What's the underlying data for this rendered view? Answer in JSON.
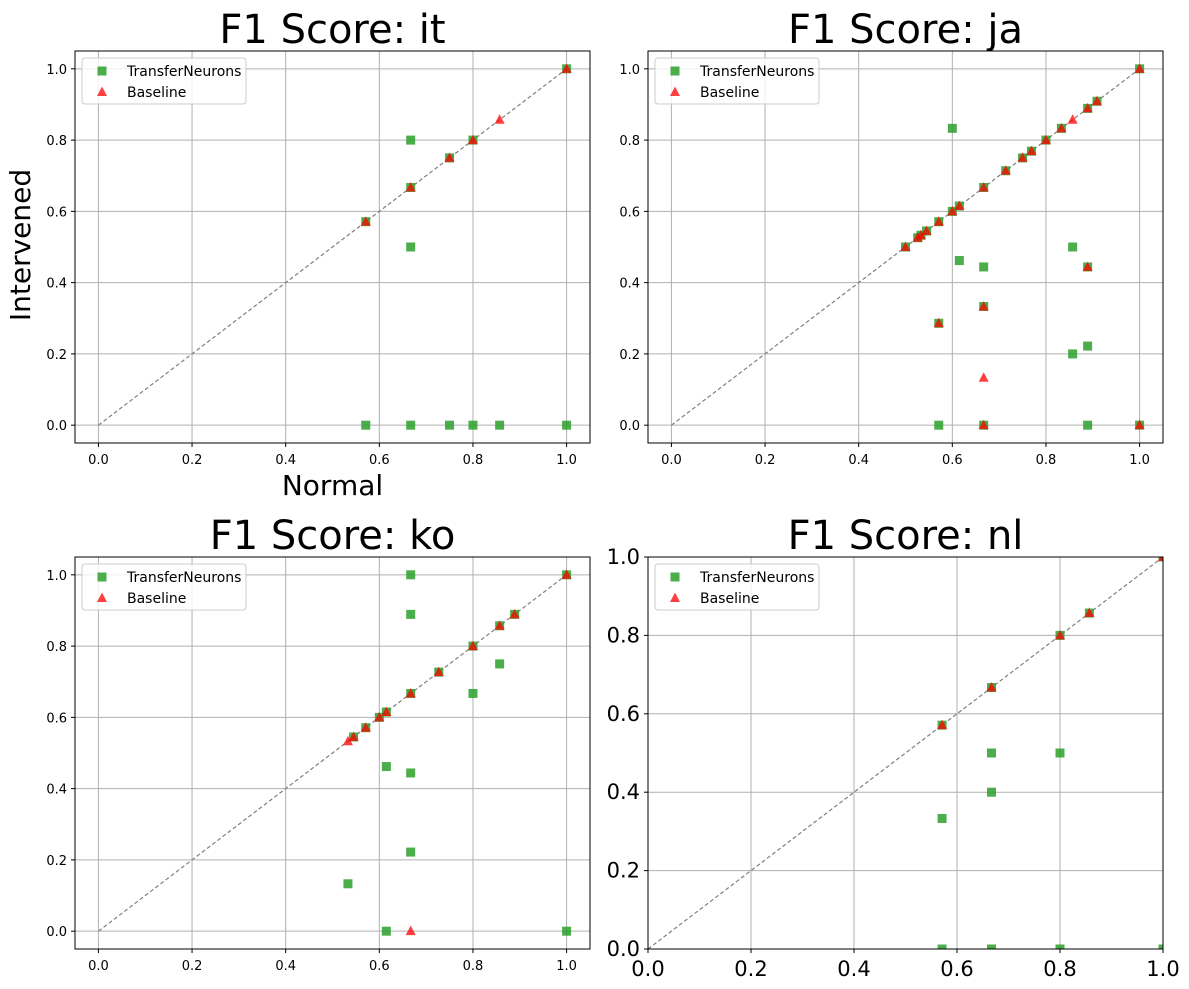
{
  "chart_data": [
    {
      "type": "scatter",
      "title": "F1 Score: it",
      "xlabel": "Normal",
      "ylabel": "Intervened",
      "xlim": [
        -0.05,
        1.05
      ],
      "ylim": [
        -0.05,
        1.05
      ],
      "xticks": [
        "0.0",
        "0.2",
        "0.4",
        "0.6",
        "0.8",
        "1.0"
      ],
      "yticks": [
        "0.0",
        "0.2",
        "0.4",
        "0.6",
        "0.8",
        "1.0"
      ],
      "grid": true,
      "legend": "top-left",
      "reference_line": [
        [
          0,
          0
        ],
        [
          1,
          1
        ]
      ],
      "series": [
        {
          "name": "TransferNeurons",
          "marker": "square",
          "color": "#2ca02c",
          "points": [
            [
              0.571,
              0.571
            ],
            [
              0.667,
              0.8
            ],
            [
              0.667,
              0.667
            ],
            [
              0.667,
              0.5
            ],
            [
              0.75,
              0.75
            ],
            [
              0.8,
              0.8
            ],
            [
              1.0,
              1.0
            ],
            [
              0.571,
              0.0
            ],
            [
              0.667,
              0.0
            ],
            [
              0.75,
              0.0
            ],
            [
              0.8,
              0.0
            ],
            [
              0.857,
              0.0
            ],
            [
              1.0,
              0.0
            ]
          ]
        },
        {
          "name": "Baseline",
          "marker": "triangle",
          "color": "#ff0000",
          "points": [
            [
              0.571,
              0.571
            ],
            [
              0.667,
              0.667
            ],
            [
              0.75,
              0.75
            ],
            [
              0.8,
              0.8
            ],
            [
              0.857,
              0.857
            ],
            [
              1.0,
              1.0
            ]
          ]
        }
      ]
    },
    {
      "type": "scatter",
      "title": "F1 Score: ja",
      "xlabel": "",
      "ylabel": "",
      "xlim": [
        -0.05,
        1.05
      ],
      "ylim": [
        -0.05,
        1.05
      ],
      "xticks": [
        "0.0",
        "0.2",
        "0.4",
        "0.6",
        "0.8",
        "1.0"
      ],
      "yticks": [
        "0.0",
        "0.2",
        "0.4",
        "0.6",
        "0.8",
        "1.0"
      ],
      "grid": true,
      "legend": "top-left",
      "reference_line": [
        [
          0,
          0
        ],
        [
          1,
          1
        ]
      ],
      "series": [
        {
          "name": "TransferNeurons",
          "marker": "square",
          "color": "#2ca02c",
          "points": [
            [
              0.5,
              0.5
            ],
            [
              0.526,
              0.526
            ],
            [
              0.533,
              0.533
            ],
            [
              0.545,
              0.545
            ],
            [
              0.571,
              0.571
            ],
            [
              0.6,
              0.6
            ],
            [
              0.615,
              0.615
            ],
            [
              0.667,
              0.667
            ],
            [
              0.714,
              0.714
            ],
            [
              0.75,
              0.75
            ],
            [
              0.769,
              0.769
            ],
            [
              0.8,
              0.8
            ],
            [
              0.833,
              0.833
            ],
            [
              0.889,
              0.889
            ],
            [
              0.909,
              0.909
            ],
            [
              1.0,
              1.0
            ],
            [
              0.6,
              0.833
            ],
            [
              0.615,
              0.462
            ],
            [
              0.667,
              0.444
            ],
            [
              0.571,
              0.286
            ],
            [
              0.667,
              0.333
            ],
            [
              0.857,
              0.5
            ],
            [
              0.889,
              0.444
            ],
            [
              0.857,
              0.2
            ],
            [
              0.889,
              0.222
            ],
            [
              0.571,
              0.0
            ],
            [
              0.667,
              0.0
            ],
            [
              0.889,
              0.0
            ],
            [
              1.0,
              0.0
            ]
          ]
        },
        {
          "name": "Baseline",
          "marker": "triangle",
          "color": "#ff0000",
          "points": [
            [
              0.5,
              0.5
            ],
            [
              0.526,
              0.526
            ],
            [
              0.533,
              0.533
            ],
            [
              0.545,
              0.545
            ],
            [
              0.571,
              0.571
            ],
            [
              0.6,
              0.6
            ],
            [
              0.615,
              0.615
            ],
            [
              0.667,
              0.667
            ],
            [
              0.714,
              0.714
            ],
            [
              0.75,
              0.75
            ],
            [
              0.769,
              0.769
            ],
            [
              0.8,
              0.8
            ],
            [
              0.833,
              0.833
            ],
            [
              0.857,
              0.857
            ],
            [
              0.889,
              0.889
            ],
            [
              0.909,
              0.909
            ],
            [
              1.0,
              1.0
            ],
            [
              0.571,
              0.286
            ],
            [
              0.667,
              0.333
            ],
            [
              0.889,
              0.444
            ],
            [
              0.667,
              0.133
            ],
            [
              0.667,
              0.0
            ],
            [
              1.0,
              0.0
            ]
          ]
        }
      ]
    },
    {
      "type": "scatter",
      "title": "F1 Score: ko",
      "xlabel": "",
      "ylabel": "",
      "xlim": [
        -0.05,
        1.05
      ],
      "ylim": [
        -0.05,
        1.05
      ],
      "xticks": [
        "0.0",
        "0.2",
        "0.4",
        "0.6",
        "0.8",
        "1.0"
      ],
      "yticks": [
        "0.0",
        "0.2",
        "0.4",
        "0.6",
        "0.8",
        "1.0"
      ],
      "grid": true,
      "legend": "top-left",
      "reference_line": [
        [
          0,
          0
        ],
        [
          1,
          1
        ]
      ],
      "series": [
        {
          "name": "TransferNeurons",
          "marker": "square",
          "color": "#2ca02c",
          "points": [
            [
              0.545,
              0.545
            ],
            [
              0.571,
              0.571
            ],
            [
              0.6,
              0.6
            ],
            [
              0.615,
              0.615
            ],
            [
              0.667,
              0.667
            ],
            [
              0.727,
              0.727
            ],
            [
              0.8,
              0.8
            ],
            [
              0.857,
              0.857
            ],
            [
              0.889,
              0.889
            ],
            [
              1.0,
              1.0
            ],
            [
              0.667,
              1.0
            ],
            [
              0.667,
              0.889
            ],
            [
              0.8,
              0.667
            ],
            [
              0.857,
              0.75
            ],
            [
              0.615,
              0.462
            ],
            [
              0.667,
              0.444
            ],
            [
              0.667,
              0.222
            ],
            [
              0.533,
              0.133
            ],
            [
              0.615,
              0.0
            ],
            [
              1.0,
              0.0
            ]
          ]
        },
        {
          "name": "Baseline",
          "marker": "triangle",
          "color": "#ff0000",
          "points": [
            [
              0.533,
              0.533
            ],
            [
              0.545,
              0.545
            ],
            [
              0.571,
              0.571
            ],
            [
              0.6,
              0.6
            ],
            [
              0.615,
              0.615
            ],
            [
              0.667,
              0.667
            ],
            [
              0.727,
              0.727
            ],
            [
              0.8,
              0.8
            ],
            [
              0.857,
              0.857
            ],
            [
              0.889,
              0.889
            ],
            [
              1.0,
              1.0
            ],
            [
              0.667,
              0.0
            ]
          ]
        }
      ]
    },
    {
      "type": "scatter",
      "title": "F1 Score: nl",
      "xlabel": "",
      "ylabel": "",
      "xlim": [
        0.0,
        1.0
      ],
      "ylim": [
        0.0,
        1.0
      ],
      "xticks": [
        "0.0",
        "0.2",
        "0.4",
        "0.6",
        "0.8",
        "1.0"
      ],
      "yticks": [
        "0.0",
        "0.2",
        "0.4",
        "0.6",
        "0.8",
        "1.0"
      ],
      "grid": true,
      "legend": "top-left",
      "reference_line": [
        [
          0,
          0
        ],
        [
          1,
          1
        ]
      ],
      "series": [
        {
          "name": "TransferNeurons",
          "marker": "square",
          "color": "#2ca02c",
          "points": [
            [
              0.571,
              0.571
            ],
            [
              0.667,
              0.667
            ],
            [
              0.8,
              0.8
            ],
            [
              0.857,
              0.857
            ],
            [
              1.0,
              1.0
            ],
            [
              0.667,
              0.5
            ],
            [
              0.8,
              0.5
            ],
            [
              0.667,
              0.4
            ],
            [
              0.571,
              0.333
            ],
            [
              0.571,
              0.0
            ],
            [
              0.667,
              0.0
            ],
            [
              0.8,
              0.0
            ],
            [
              1.0,
              0.0
            ]
          ]
        },
        {
          "name": "Baseline",
          "marker": "triangle",
          "color": "#ff0000",
          "points": [
            [
              0.571,
              0.571
            ],
            [
              0.667,
              0.667
            ],
            [
              0.8,
              0.8
            ],
            [
              0.857,
              0.857
            ],
            [
              1.0,
              1.0
            ]
          ]
        }
      ]
    }
  ]
}
